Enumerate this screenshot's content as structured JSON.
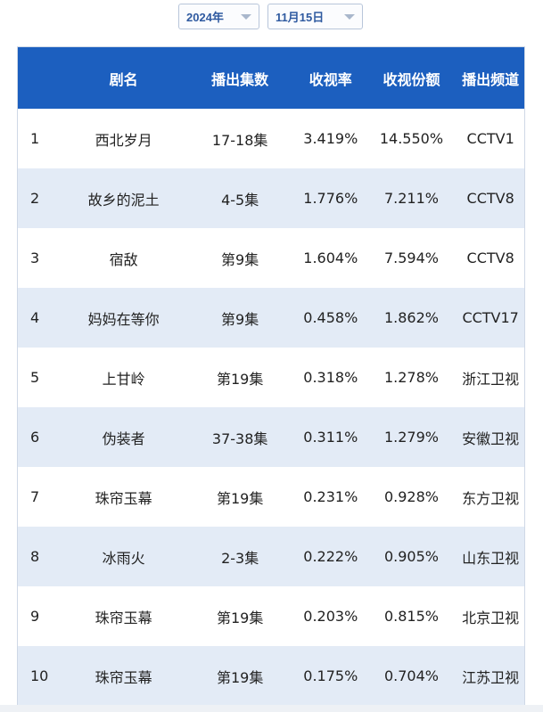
{
  "filters": {
    "year": "2024年",
    "date": "11月15日"
  },
  "table": {
    "headers": [
      "",
      "剧名",
      "播出集数",
      "收视率",
      "收视份额",
      "播出频道"
    ],
    "rows": [
      [
        "1",
        "西北岁月",
        "17-18集",
        "3.419%",
        "14.550%",
        "CCTV1"
      ],
      [
        "2",
        "故乡的泥土",
        "4-5集",
        "1.776%",
        "7.211%",
        "CCTV8"
      ],
      [
        "3",
        "宿敌",
        "第9集",
        "1.604%",
        "7.594%",
        "CCTV8"
      ],
      [
        "4",
        "妈妈在等你",
        "第9集",
        "0.458%",
        "1.862%",
        "CCTV17"
      ],
      [
        "5",
        "上甘岭",
        "第19集",
        "0.318%",
        "1.278%",
        "浙江卫视"
      ],
      [
        "6",
        "伪装者",
        "37-38集",
        "0.311%",
        "1.279%",
        "安徽卫视"
      ],
      [
        "7",
        "珠帘玉幕",
        "第19集",
        "0.231%",
        "0.928%",
        "东方卫视"
      ],
      [
        "8",
        "冰雨火",
        "2-3集",
        "0.222%",
        "0.905%",
        "山东卫视"
      ],
      [
        "9",
        "珠帘玉幕",
        "第19集",
        "0.203%",
        "0.815%",
        "北京卫视"
      ],
      [
        "10",
        "珠帘玉幕",
        "第19集",
        "0.175%",
        "0.704%",
        "江苏卫视"
      ]
    ]
  },
  "colors": {
    "header_bg": "#1c5fbf",
    "stripe_bg": "#e3ebf6",
    "select_text": "#2f5aa0"
  }
}
